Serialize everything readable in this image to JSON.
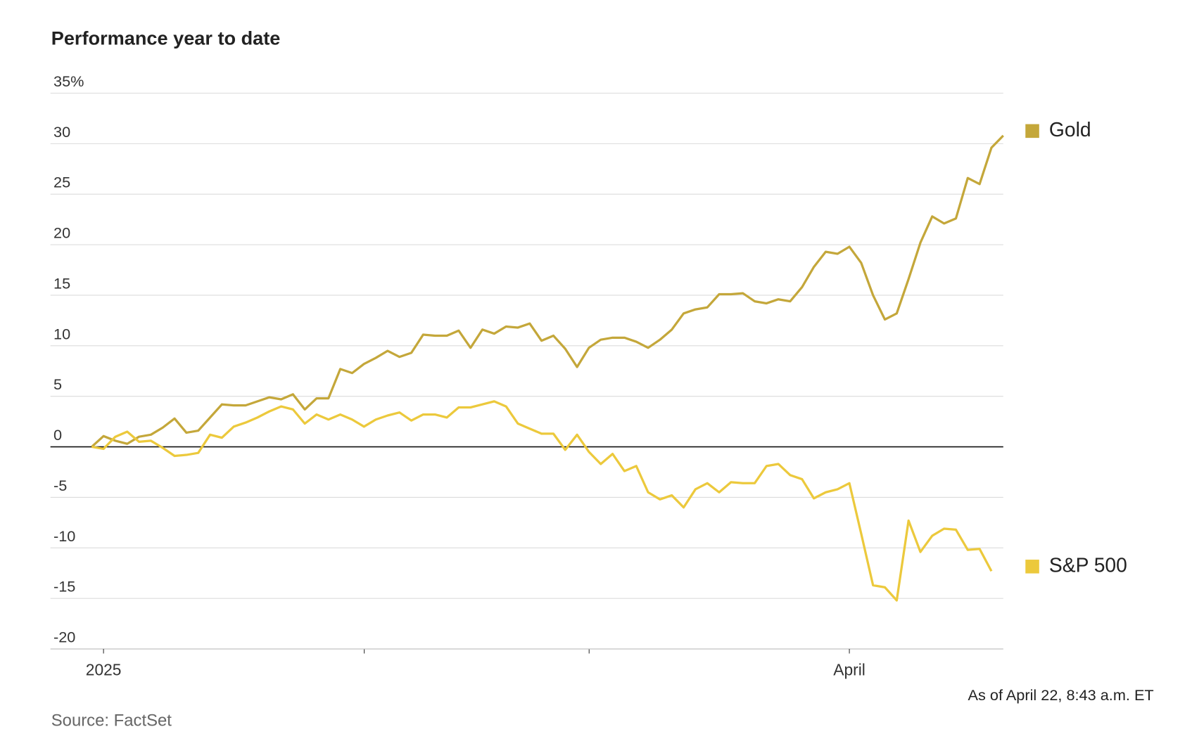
{
  "chart_data": {
    "type": "line",
    "title": "Performance year to date",
    "source": "Source: FactSet",
    "note": "As of April 22, 8:43 a.m. ET",
    "categories": [
      null,
      "2025",
      null,
      null,
      null,
      null,
      null,
      null,
      null,
      null,
      null,
      null,
      null,
      null,
      null,
      null,
      null,
      null,
      null,
      null,
      null,
      null,
      null,
      null,
      null,
      null,
      null,
      null,
      null,
      null,
      null,
      null,
      null,
      null,
      null,
      null,
      null,
      null,
      null,
      null,
      null,
      null,
      null,
      null,
      null,
      null,
      null,
      null,
      null,
      null,
      null,
      null,
      null,
      null,
      null,
      null,
      null,
      null,
      null,
      null,
      null,
      null,
      null,
      null,
      "April",
      null,
      null,
      null,
      null,
      null,
      null,
      null,
      null,
      null,
      null,
      null,
      null,
      null
    ],
    "series": [
      {
        "name": "Gold",
        "color": "#c4a73a",
        "values": [
          0,
          1.06,
          0.6,
          0.3,
          1.0,
          1.2,
          1.9,
          2.8,
          1.4,
          1.6,
          2.9,
          4.2,
          4.1,
          4.1,
          4.5,
          4.9,
          4.7,
          5.2,
          3.7,
          4.8,
          4.8,
          7.7,
          7.3,
          8.2,
          8.8,
          9.5,
          8.9,
          9.3,
          11.1,
          11.0,
          11.0,
          11.5,
          9.8,
          11.6,
          11.2,
          11.9,
          11.8,
          12.2,
          10.5,
          11.0,
          9.7,
          7.9,
          9.8,
          10.6,
          10.8,
          10.8,
          10.4,
          9.8,
          10.6,
          11.6,
          13.2,
          13.6,
          13.8,
          15.1,
          15.1,
          15.2,
          14.4,
          14.2,
          14.6,
          14.4,
          15.8,
          17.8,
          19.3,
          19.1,
          19.8,
          18.2,
          15.0,
          12.6,
          13.2,
          16.6,
          20.2,
          22.8,
          22.1,
          22.6,
          26.6,
          26.0,
          29.6,
          30.8
        ]
      },
      {
        "name": "S&P 500",
        "color": "#ecc93c",
        "values": [
          0,
          -0.2,
          1.0,
          1.5,
          0.5,
          0.6,
          -0.1,
          -0.9,
          -0.8,
          -0.6,
          1.2,
          0.9,
          2.0,
          2.4,
          2.9,
          3.5,
          4.0,
          3.7,
          2.3,
          3.2,
          2.7,
          3.2,
          2.7,
          2.0,
          2.7,
          3.1,
          3.4,
          2.6,
          3.2,
          3.2,
          2.9,
          3.9,
          3.9,
          4.2,
          4.5,
          4.0,
          2.3,
          1.8,
          1.3,
          1.3,
          -0.3,
          1.2,
          -0.5,
          -1.7,
          -0.7,
          -2.4,
          -1.9,
          -4.5,
          -5.2,
          -4.8,
          -6.0,
          -4.2,
          -3.6,
          -4.5,
          -3.5,
          -3.6,
          -3.6,
          -1.9,
          -1.7,
          -2.8,
          -3.2,
          -5.1,
          -4.5,
          -4.2,
          -3.6,
          -8.6,
          -13.7,
          -13.9,
          -15.2,
          -7.3,
          -10.4,
          -8.8,
          -8.1,
          -8.2,
          -10.2,
          -10.1,
          -12.3,
          null
        ]
      }
    ],
    "ylim": [
      -20,
      35
    ],
    "yticks": [
      -20,
      -15,
      -10,
      -5,
      0,
      5,
      10,
      15,
      20,
      25,
      30,
      {
        "value": 35,
        "label": "35%"
      }
    ],
    "grid": true,
    "legend": "right"
  }
}
